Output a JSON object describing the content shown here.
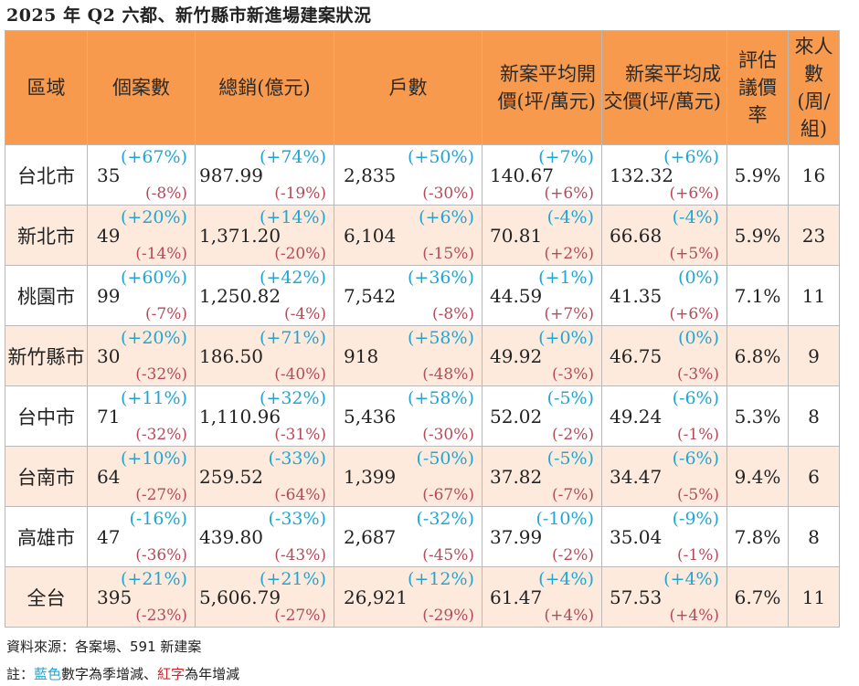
{
  "title": "2025 年 Q2 六都、新竹縣市新進場建案狀況",
  "headers": {
    "region": "區域",
    "projects": "個案數",
    "total_sales": "總銷(億元)",
    "units": "戶數",
    "avg_ask_l1": "新案平均開",
    "avg_ask_l2": "價(坪/萬元)",
    "avg_deal_l1": "新案平均成",
    "avg_deal_l2": "交價(坪/萬元)",
    "bargain_l1": "評估",
    "bargain_l2": "議價",
    "bargain_l3": "率",
    "visitors_l1": "來人",
    "visitors_l2": "數",
    "visitors_l3": "(周/",
    "visitors_l4": "組)"
  },
  "rows": [
    {
      "region": "台北市",
      "projects": {
        "value": "35",
        "qoq": "(+67%)",
        "yoy": "(-8%)"
      },
      "sales": {
        "value": "987.99",
        "qoq": "(+74%)",
        "yoy": "(-19%)"
      },
      "units": {
        "value": "2,835",
        "qoq": "(+50%)",
        "yoy": "(-30%)"
      },
      "ask": {
        "value": "140.67",
        "qoq": "(+7%)",
        "yoy": "(+6%)"
      },
      "deal": {
        "value": "132.32",
        "qoq": "(+6%)",
        "yoy": "(+6%)"
      },
      "bargain": "5.9%",
      "visitors": "16"
    },
    {
      "region": "新北市",
      "projects": {
        "value": "49",
        "qoq": "(+20%)",
        "yoy": "(-14%)"
      },
      "sales": {
        "value": "1,371.20",
        "qoq": "(+14%)",
        "yoy": "(-20%)"
      },
      "units": {
        "value": "6,104",
        "qoq": "(+6%)",
        "yoy": "(-15%)"
      },
      "ask": {
        "value": "70.81",
        "qoq": "(-4%)",
        "yoy": "(+2%)"
      },
      "deal": {
        "value": "66.68",
        "qoq": "(-4%)",
        "yoy": "(+5%)"
      },
      "bargain": "5.9%",
      "visitors": "23"
    },
    {
      "region": "桃園市",
      "projects": {
        "value": "99",
        "qoq": "(+60%)",
        "yoy": "(-7%)"
      },
      "sales": {
        "value": "1,250.82",
        "qoq": "(+42%)",
        "yoy": "(-4%)"
      },
      "units": {
        "value": "7,542",
        "qoq": "(+36%)",
        "yoy": "(-8%)"
      },
      "ask": {
        "value": "44.59",
        "qoq": "(+1%)",
        "yoy": "(+7%)"
      },
      "deal": {
        "value": "41.35",
        "qoq": "(0%)",
        "yoy": "(+6%)"
      },
      "bargain": "7.1%",
      "visitors": "11"
    },
    {
      "region": "新竹縣市",
      "projects": {
        "value": "30",
        "qoq": "(+20%)",
        "yoy": "(-32%)"
      },
      "sales": {
        "value": "186.50",
        "qoq": "(+71%)",
        "yoy": "(-40%)"
      },
      "units": {
        "value": "918",
        "qoq": "(+58%)",
        "yoy": "(-48%)"
      },
      "ask": {
        "value": "49.92",
        "qoq": "(+0%)",
        "yoy": "(-3%)"
      },
      "deal": {
        "value": "46.75",
        "qoq": "(0%)",
        "yoy": "(-3%)"
      },
      "bargain": "6.8%",
      "visitors": "9"
    },
    {
      "region": "台中市",
      "projects": {
        "value": "71",
        "qoq": "(+11%)",
        "yoy": "(-32%)"
      },
      "sales": {
        "value": "1,110.96",
        "qoq": "(+32%)",
        "yoy": "(-31%)"
      },
      "units": {
        "value": "5,436",
        "qoq": "(+58%)",
        "yoy": "(-30%)"
      },
      "ask": {
        "value": "52.02",
        "qoq": "(-5%)",
        "yoy": "(-2%)"
      },
      "deal": {
        "value": "49.24",
        "qoq": "(-6%)",
        "yoy": "(-1%)"
      },
      "bargain": "5.3%",
      "visitors": "8"
    },
    {
      "region": "台南市",
      "projects": {
        "value": "64",
        "qoq": "(+10%)",
        "yoy": "(-27%)"
      },
      "sales": {
        "value": "259.52",
        "qoq": "(-33%)",
        "yoy": "(-64%)"
      },
      "units": {
        "value": "1,399",
        "qoq": "(-50%)",
        "yoy": "(-67%)"
      },
      "ask": {
        "value": "37.82",
        "qoq": "(-5%)",
        "yoy": "(-7%)"
      },
      "deal": {
        "value": "34.47",
        "qoq": "(-6%)",
        "yoy": "(-5%)"
      },
      "bargain": "9.4%",
      "visitors": "6"
    },
    {
      "region": "高雄市",
      "projects": {
        "value": "47",
        "qoq": "(-16%)",
        "yoy": "(-36%)"
      },
      "sales": {
        "value": "439.80",
        "qoq": "(-33%)",
        "yoy": "(-43%)"
      },
      "units": {
        "value": "2,687",
        "qoq": "(-32%)",
        "yoy": "(-45%)"
      },
      "ask": {
        "value": "37.99",
        "qoq": "(-10%)",
        "yoy": "(-2%)"
      },
      "deal": {
        "value": "35.04",
        "qoq": "(-9%)",
        "yoy": "(-1%)"
      },
      "bargain": "7.8%",
      "visitors": "8"
    },
    {
      "region": "全台",
      "projects": {
        "value": "395",
        "qoq": "(+21%)",
        "yoy": "(-23%)"
      },
      "sales": {
        "value": "5,606.79",
        "qoq": "(+21%)",
        "yoy": "(-27%)"
      },
      "units": {
        "value": "26,921",
        "qoq": "(+12%)",
        "yoy": "(-29%)"
      },
      "ask": {
        "value": "61.47",
        "qoq": "(+4%)",
        "yoy": "(+4%)"
      },
      "deal": {
        "value": "57.53",
        "qoq": "(+4%)",
        "yoy": "(+4%)"
      },
      "bargain": "6.7%",
      "visitors": "11"
    }
  ],
  "footer": {
    "source": "資料來源：各案場、591 新建案",
    "note_prefix": "註：",
    "note_blue": "藍色",
    "note_mid": "數字為季增減、",
    "note_red": "紅字",
    "note_suffix": "為年增減"
  },
  "colors": {
    "header_bg": "#f79a4e",
    "shaded_row": "#fdeadd",
    "qoq_text": "#1ea7d6",
    "yoy_text": "#b44a5a",
    "note_red": "#d32727"
  }
}
